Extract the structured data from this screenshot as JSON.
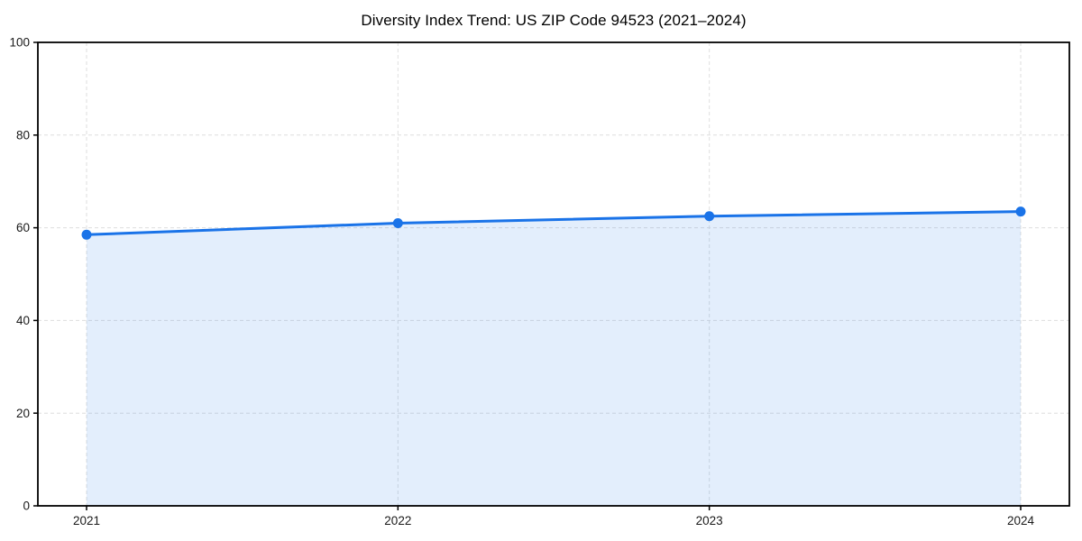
{
  "page": {
    "background": "#ffffff"
  },
  "chart_data": {
    "type": "line",
    "title": "Diversity Index Trend: US ZIP Code 94523 (2021–2024)",
    "categories": [
      "2021",
      "2022",
      "2023",
      "2024"
    ],
    "series": [
      {
        "name": "Diversity Index",
        "values": [
          58.5,
          61.0,
          62.5,
          63.5
        ]
      }
    ],
    "xlabel": "",
    "ylabel": "",
    "ylim": [
      0,
      100
    ],
    "yticks": [
      0,
      20,
      40,
      60,
      80,
      100
    ],
    "grid": true,
    "grid_style": "dashed",
    "legend": false,
    "area_fill": true,
    "markers": true,
    "colors": {
      "line": "#1a73e8",
      "marker": "#1a73e8",
      "area": "#1a73e8",
      "area_opacity": 0.12,
      "grid": "#dedede",
      "spine": "#000000",
      "tick_text": "#1a1a1a",
      "title_text": "#000000",
      "background": "#ffffff"
    }
  }
}
